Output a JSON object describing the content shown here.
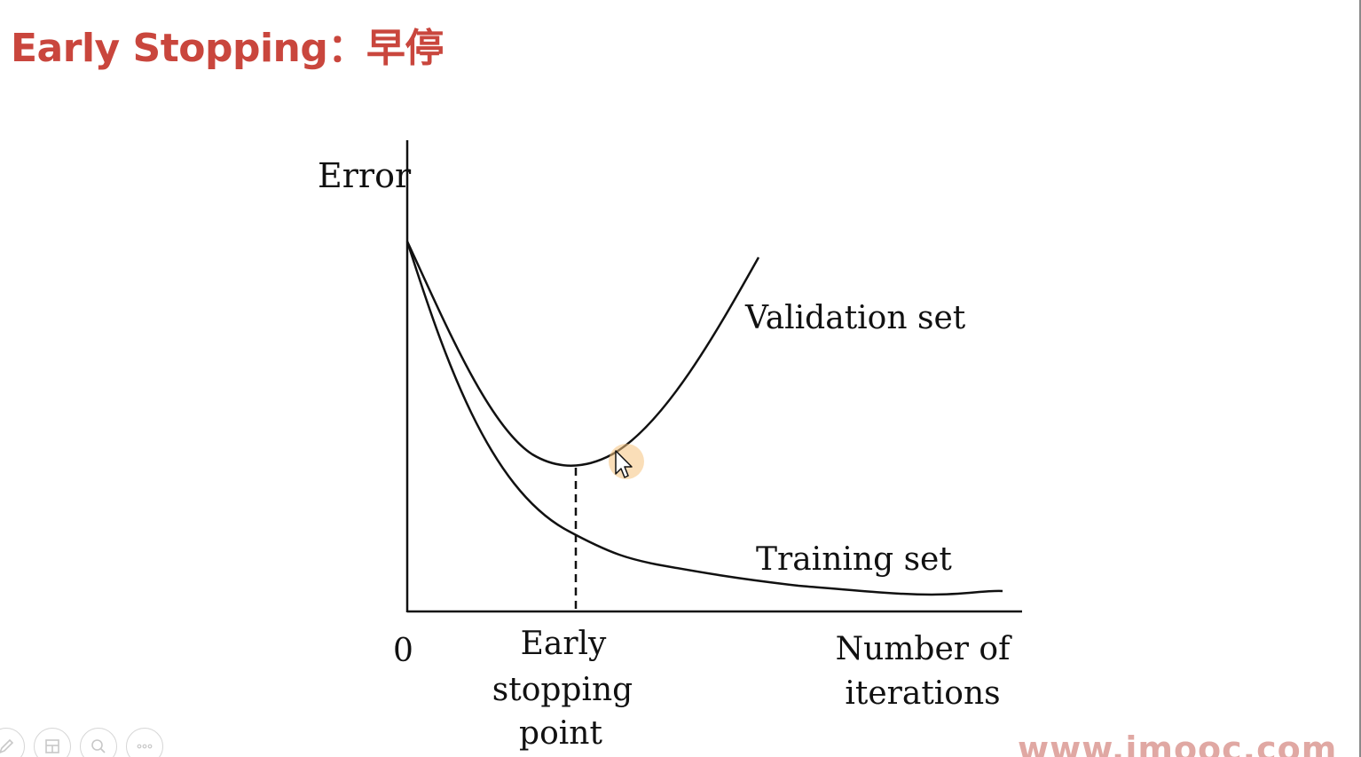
{
  "slide": {
    "title": "Early Stopping：早停"
  },
  "diagram": {
    "y_axis_label": "Error",
    "origin_label": "0",
    "x_axis_label_line1": "Number of",
    "x_axis_label_line2": "iterations",
    "early_stop_label_line1": "Early",
    "early_stop_label_line2": "stopping",
    "early_stop_label_line3": "point",
    "validation_curve_label": "Validation set",
    "training_curve_label": "Training set",
    "line_color": "#111111"
  },
  "toolbar": {
    "buttons": [
      {
        "icon": "pen-icon"
      },
      {
        "icon": "slides-icon"
      },
      {
        "icon": "zoom-icon"
      },
      {
        "icon": "more-icon"
      }
    ]
  },
  "watermark": {
    "text": "www.imooc.com"
  },
  "colors": {
    "title": "#c9463d",
    "watermark": "#e0a8a3",
    "cursor_highlight": "#f6c27e"
  }
}
